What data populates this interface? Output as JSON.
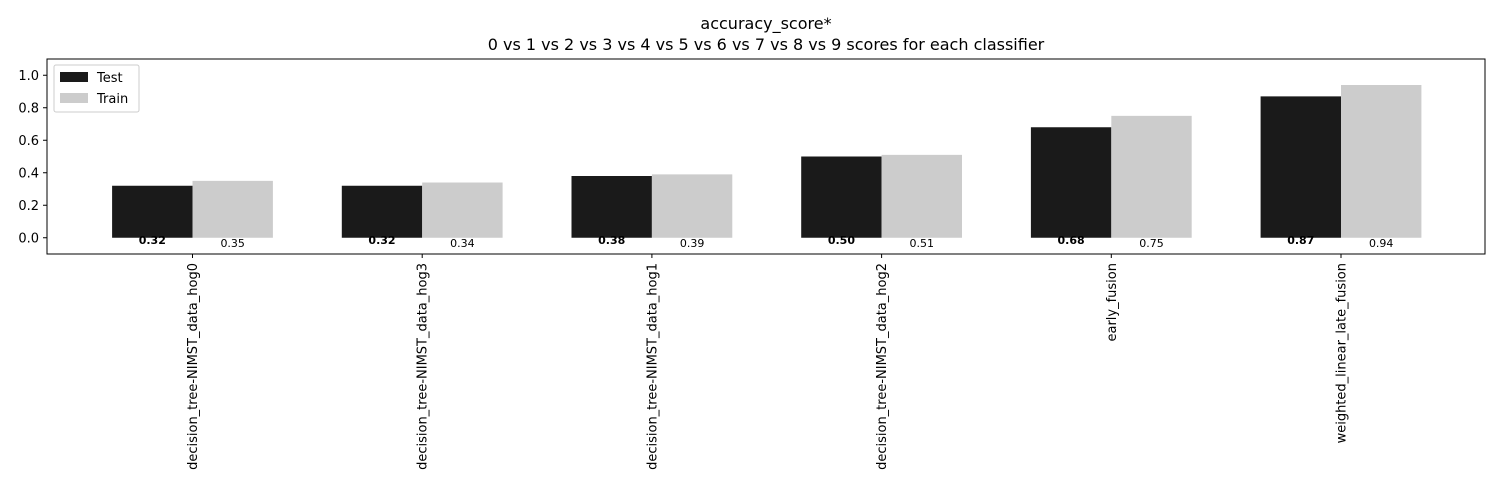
{
  "chart_data": {
    "type": "bar",
    "title": "accuracy_score*",
    "subtitle": "0 vs 1 vs 2 vs 3 vs 4 vs 5 vs 6 vs 7 vs 8 vs 9 scores for each classifier",
    "xlabel": "",
    "ylabel": "",
    "ylim": [
      -0.1,
      1.1
    ],
    "yticks": [
      0.0,
      0.2,
      0.4,
      0.6,
      0.8,
      1.0
    ],
    "ytick_labels": [
      "0.0",
      "0.2",
      "0.4",
      "0.6",
      "0.8",
      "1.0"
    ],
    "grid": false,
    "legend_position": "top-left",
    "categories": [
      "decision_tree-NIMST_data_hog0",
      "decision_tree-NIMST_data_hog3",
      "decision_tree-NIMST_data_hog1",
      "decision_tree-NIMST_data_hog2",
      "early_fusion",
      "weighted_linear_late_fusion"
    ],
    "series": [
      {
        "name": "Test",
        "color": "#1a1a1a",
        "values": [
          0.32,
          0.32,
          0.38,
          0.5,
          0.68,
          0.87
        ],
        "labels": [
          "0.32",
          "0.32",
          "0.38",
          "0.50",
          "0.68",
          "0.87"
        ],
        "label_weight": "bold"
      },
      {
        "name": "Train",
        "color": "#cccccc",
        "values": [
          0.35,
          0.34,
          0.39,
          0.51,
          0.75,
          0.94
        ],
        "labels": [
          "0.35",
          "0.34",
          "0.39",
          "0.51",
          "0.75",
          "0.94"
        ],
        "label_weight": "normal"
      }
    ]
  }
}
